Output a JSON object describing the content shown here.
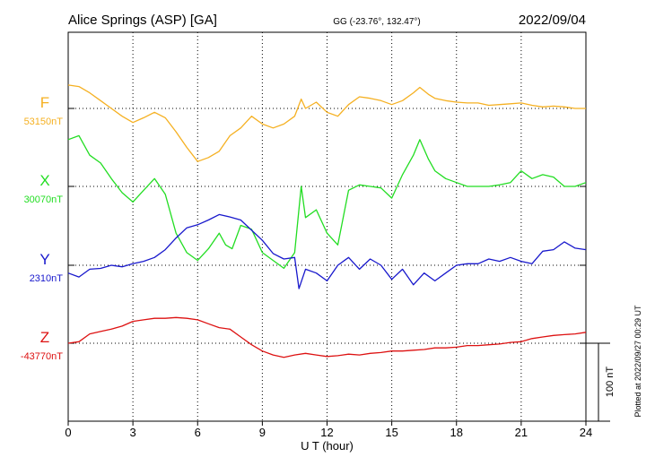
{
  "header": {
    "station": "Alice Springs (ASP)  [GA]",
    "coords": "GG (-23.76°, 132.47°)",
    "date": "2022/09/04"
  },
  "plotted_note": "Plotted at 2022/09/27 00:29 UT",
  "scale_label": "100 nT",
  "chart_data": {
    "type": "line",
    "xlabel": "U T (hour)",
    "xlim": [
      0,
      24
    ],
    "x_ticks": [
      "0",
      "3",
      "6",
      "9",
      "12",
      "15",
      "18",
      "21",
      "24"
    ],
    "grid": true,
    "baseline_units_per_row": 100,
    "series": [
      {
        "name": "F",
        "baseline_label": "53150nT",
        "color": "#f5b021",
        "x": [
          0,
          0.5,
          1,
          1.5,
          2,
          2.5,
          3,
          3.5,
          4,
          4.5,
          5,
          5.5,
          6,
          6.5,
          7,
          7.5,
          8,
          8.5,
          9,
          9.5,
          10,
          10.5,
          10.8,
          11,
          11.5,
          12,
          12.5,
          13,
          13.5,
          14,
          14.5,
          15,
          15.5,
          16,
          16.3,
          16.7,
          17,
          17.5,
          18,
          18.5,
          19,
          19.5,
          20,
          20.5,
          21,
          21.5,
          22,
          22.5,
          23,
          23.5,
          24
        ],
        "values": [
          53180,
          53178,
          53170,
          53160,
          53150,
          53140,
          53132,
          53138,
          53145,
          53138,
          53120,
          53100,
          53082,
          53087,
          53095,
          53115,
          53125,
          53140,
          53130,
          53125,
          53130,
          53140,
          53162,
          53150,
          53158,
          53145,
          53140,
          53155,
          53165,
          53163,
          53160,
          53155,
          53160,
          53170,
          53177,
          53168,
          53163,
          53160,
          53158,
          53157,
          53157,
          53154,
          53155,
          53156,
          53157,
          53154,
          53152,
          53153,
          53152,
          53150,
          53150
        ]
      },
      {
        "name": "X",
        "baseline_label": "30070nT",
        "color": "#22dd22",
        "x": [
          0,
          0.5,
          1,
          1.5,
          2,
          2.5,
          3,
          3.5,
          4,
          4.5,
          5,
          5.5,
          6,
          6.5,
          7,
          7.3,
          7.6,
          8,
          8.5,
          9,
          9.5,
          10,
          10.5,
          10.8,
          11,
          11.5,
          12,
          12.5,
          13,
          13.5,
          14,
          14.5,
          15,
          15.5,
          16,
          16.3,
          16.7,
          17,
          17.5,
          18,
          18.5,
          19,
          19.5,
          20,
          20.5,
          21,
          21.5,
          22,
          22.5,
          23,
          23.5,
          24
        ],
        "values": [
          30130,
          30135,
          30110,
          30100,
          30080,
          30062,
          30050,
          30065,
          30080,
          30060,
          30010,
          29985,
          29975,
          29990,
          30010,
          29995,
          29990,
          30020,
          30015,
          29985,
          29975,
          29965,
          29985,
          30070,
          30030,
          30040,
          30010,
          29995,
          30065,
          30072,
          30070,
          30068,
          30055,
          30085,
          30110,
          30130,
          30105,
          30090,
          30080,
          30075,
          30070,
          30070,
          30070,
          30072,
          30075,
          30090,
          30080,
          30085,
          30082,
          30070,
          30070,
          30075
        ]
      },
      {
        "name": "Y",
        "baseline_label": "2310nT",
        "color": "#1818cc",
        "x": [
          0,
          0.5,
          1,
          1.5,
          2,
          2.5,
          3,
          3.5,
          4,
          4.5,
          5,
          5.5,
          6,
          6.5,
          7,
          7.5,
          8,
          8.5,
          9,
          9.5,
          10,
          10.5,
          10.7,
          11,
          11.5,
          12,
          12.5,
          13,
          13.5,
          14,
          14.5,
          15,
          15.5,
          16,
          16.5,
          17,
          17.5,
          18,
          18.5,
          19,
          19.5,
          20,
          20.5,
          21,
          21.5,
          22,
          22.5,
          23,
          23.5,
          24
        ],
        "values": [
          2300,
          2295,
          2305,
          2306,
          2310,
          2308,
          2312,
          2315,
          2320,
          2330,
          2345,
          2358,
          2362,
          2368,
          2375,
          2372,
          2368,
          2355,
          2342,
          2325,
          2318,
          2320,
          2280,
          2305,
          2300,
          2290,
          2310,
          2320,
          2305,
          2318,
          2310,
          2292,
          2305,
          2285,
          2300,
          2290,
          2300,
          2310,
          2312,
          2312,
          2318,
          2315,
          2320,
          2315,
          2312,
          2328,
          2330,
          2340,
          2332,
          2330
        ]
      },
      {
        "name": "Z",
        "baseline_label": "-43770nT",
        "color": "#dd1111",
        "x": [
          0,
          0.5,
          1,
          1.5,
          2,
          2.5,
          3,
          3.5,
          4,
          4.5,
          5,
          5.5,
          6,
          6.5,
          7,
          7.5,
          8,
          8.5,
          9,
          9.5,
          10,
          10.5,
          11,
          11.5,
          12,
          12.5,
          13,
          13.5,
          14,
          14.5,
          15,
          15.5,
          16,
          16.5,
          17,
          17.5,
          18,
          18.5,
          19,
          19.5,
          20,
          20.5,
          21,
          21.5,
          22,
          22.5,
          23,
          23.5,
          24
        ],
        "values": [
          -43770,
          -43768,
          -43758,
          -43755,
          -43752,
          -43748,
          -43742,
          -43740,
          -43738,
          -43738,
          -43737,
          -43738,
          -43740,
          -43745,
          -43750,
          -43752,
          -43762,
          -43772,
          -43780,
          -43785,
          -43788,
          -43785,
          -43783,
          -43785,
          -43787,
          -43786,
          -43784,
          -43785,
          -43783,
          -43782,
          -43780,
          -43780,
          -43779,
          -43778,
          -43776,
          -43776,
          -43775,
          -43773,
          -43773,
          -43772,
          -43771,
          -43769,
          -43768,
          -43764,
          -43762,
          -43760,
          -43759,
          -43758,
          -43756
        ]
      }
    ]
  }
}
